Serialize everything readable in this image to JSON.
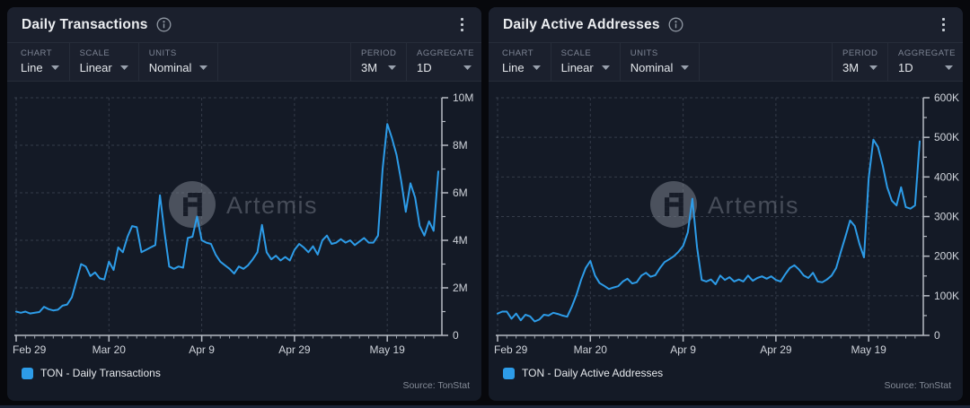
{
  "panels": [
    {
      "title": "Daily Transactions",
      "toolbar": {
        "groups": [
          {
            "label": "CHART",
            "value": "Line"
          },
          {
            "label": "SCALE",
            "value": "Linear"
          },
          {
            "label": "UNITS",
            "value": "Nominal"
          }
        ],
        "right_groups": [
          {
            "label": "PERIOD",
            "value": "3M"
          },
          {
            "label": "AGGREGATE",
            "value": "1D"
          }
        ]
      },
      "watermark": "Artemis",
      "legend": "TON - Daily Transactions",
      "source": "Source: TonStat",
      "chart_data": {
        "type": "line",
        "title": "Daily Transactions",
        "ylim": [
          0,
          10000000
        ],
        "y_ticks": [
          {
            "value": 0,
            "label": "0"
          },
          {
            "value": 2000000,
            "label": "2M"
          },
          {
            "value": 4000000,
            "label": "4M"
          },
          {
            "value": 6000000,
            "label": "6M"
          },
          {
            "value": 8000000,
            "label": "8M"
          },
          {
            "value": 10000000,
            "label": "10M"
          }
        ],
        "y_minor_step": 1000000,
        "x_ticks": [
          {
            "day": 0,
            "label": "Feb 29"
          },
          {
            "day": 20,
            "label": "Mar 20"
          },
          {
            "day": 40,
            "label": "Apr 9"
          },
          {
            "day": 60,
            "label": "Apr 29"
          },
          {
            "day": 80,
            "label": "May 19"
          }
        ],
        "grid": "dashed",
        "legend_position": "bottom-left",
        "series": [
          {
            "name": "TON - Daily Transactions",
            "color": "#2d9ce8",
            "values": [
              1000000,
              950000,
              1000000,
              920000,
              950000,
              980000,
              1200000,
              1100000,
              1050000,
              1080000,
              1250000,
              1300000,
              1600000,
              2300000,
              3000000,
              2900000,
              2500000,
              2650000,
              2400000,
              2350000,
              3100000,
              2750000,
              3700000,
              3500000,
              4150000,
              4600000,
              4550000,
              3500000,
              3600000,
              3700000,
              3800000,
              5900000,
              4300000,
              2900000,
              2800000,
              2900000,
              2850000,
              4100000,
              4150000,
              5000000,
              4000000,
              3900000,
              3850000,
              3400000,
              3100000,
              2950000,
              2800000,
              2600000,
              2900000,
              2800000,
              2950000,
              3200000,
              3500000,
              4650000,
              3500000,
              3200000,
              3350000,
              3150000,
              3300000,
              3150000,
              3600000,
              3850000,
              3700000,
              3500000,
              3750000,
              3400000,
              4000000,
              4200000,
              3850000,
              3900000,
              4050000,
              3900000,
              4000000,
              3800000,
              3950000,
              4100000,
              3900000,
              3900000,
              4200000,
              7000000,
              8900000,
              8300000,
              7600000,
              6500000,
              5200000,
              6400000,
              5800000,
              4600000,
              4200000,
              4800000,
              4400000,
              6900000
            ]
          }
        ]
      }
    },
    {
      "title": "Daily Active Addresses",
      "toolbar": {
        "groups": [
          {
            "label": "CHART",
            "value": "Line"
          },
          {
            "label": "SCALE",
            "value": "Linear"
          },
          {
            "label": "UNITS",
            "value": "Nominal"
          }
        ],
        "right_groups": [
          {
            "label": "PERIOD",
            "value": "3M"
          },
          {
            "label": "AGGREGATE",
            "value": "1D"
          }
        ]
      },
      "watermark": "Artemis",
      "legend": "TON - Daily Active Addresses",
      "source": "Source: TonStat",
      "chart_data": {
        "type": "line",
        "title": "Daily Active Addresses",
        "ylim": [
          0,
          600000
        ],
        "y_ticks": [
          {
            "value": 0,
            "label": "0"
          },
          {
            "value": 100000,
            "label": "100K"
          },
          {
            "value": 200000,
            "label": "200K"
          },
          {
            "value": 300000,
            "label": "300K"
          },
          {
            "value": 400000,
            "label": "400K"
          },
          {
            "value": 500000,
            "label": "500K"
          },
          {
            "value": 600000,
            "label": "600K"
          }
        ],
        "y_minor_step": 50000,
        "x_ticks": [
          {
            "day": 0,
            "label": "Feb 29"
          },
          {
            "day": 20,
            "label": "Mar 20"
          },
          {
            "day": 40,
            "label": "Apr 9"
          },
          {
            "day": 60,
            "label": "Apr 29"
          },
          {
            "day": 80,
            "label": "May 19"
          }
        ],
        "grid": "dashed",
        "legend_position": "bottom-left",
        "series": [
          {
            "name": "TON - Daily Active Addresses",
            "color": "#2d9ce8",
            "values": [
              55000,
              60000,
              60000,
              42000,
              55000,
              38000,
              52000,
              48000,
              35000,
              40000,
              52000,
              50000,
              57000,
              54000,
              50000,
              47000,
              72000,
              102000,
              140000,
              170000,
              188000,
              151000,
              132000,
              125000,
              117000,
              121000,
              124000,
              136000,
              143000,
              131000,
              134000,
              151000,
              158000,
              148000,
              152000,
              170000,
              185000,
              192000,
              200000,
              211000,
              226000,
              260000,
              345000,
              222000,
              140000,
              136000,
              141000,
              129000,
              151000,
              140000,
              147000,
              136000,
              141000,
              136000,
              151000,
              138000,
              145000,
              149000,
              143000,
              149000,
              140000,
              136000,
              154000,
              170000,
              177000,
              166000,
              151000,
              145000,
              158000,
              136000,
              134000,
              141000,
              151000,
              170000,
              211000,
              250000,
              290000,
              276000,
              231000,
              197000,
              397000,
              494000,
              476000,
              430000,
              374000,
              340000,
              328000,
              374000,
              324000,
              320000,
              328000,
              490000
            ]
          }
        ]
      }
    }
  ]
}
